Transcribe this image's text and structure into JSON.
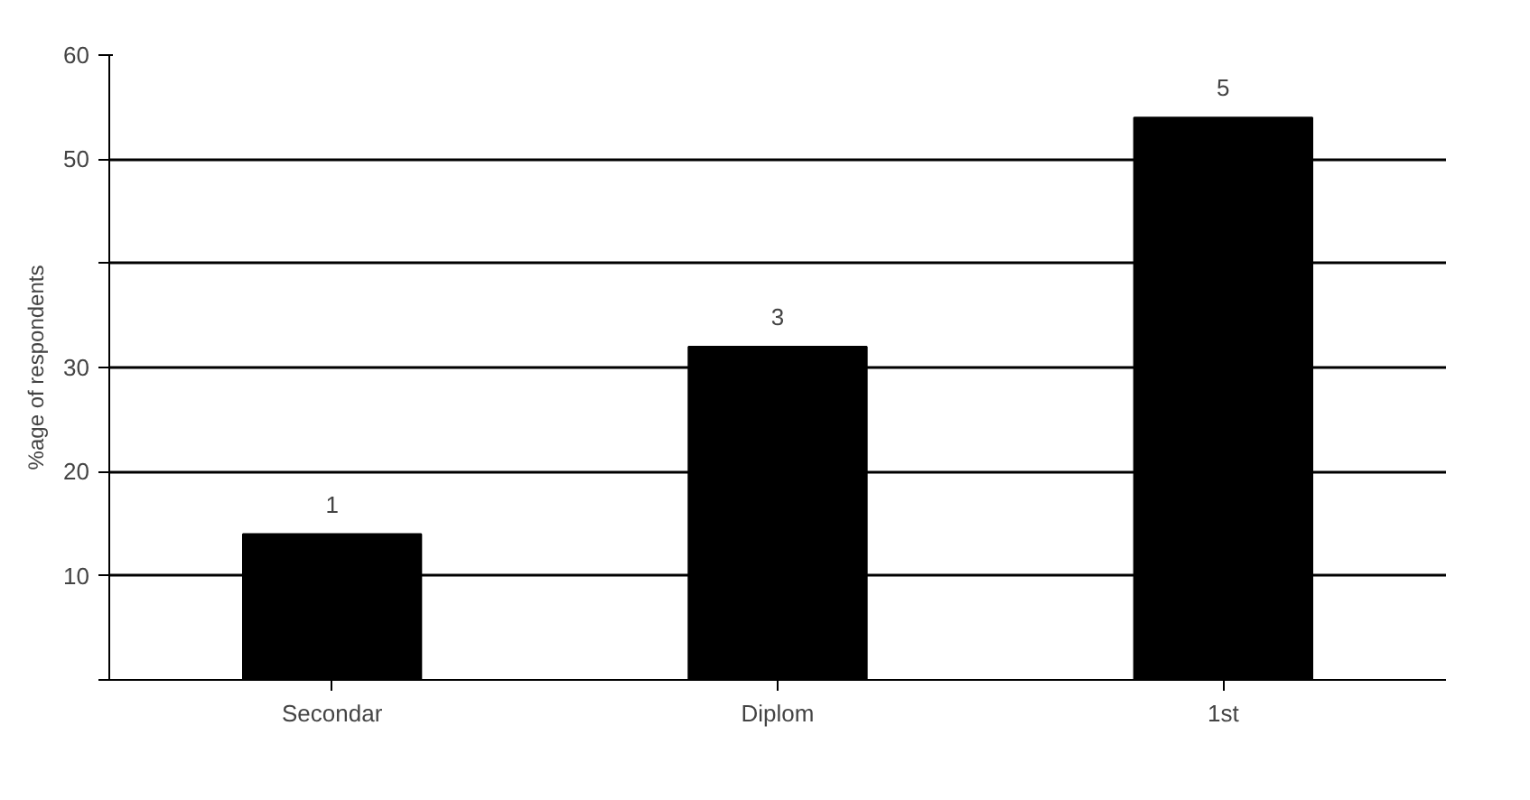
{
  "chart_data": {
    "type": "bar",
    "ylabel": "%age of respondents",
    "categories": [
      "Secondar",
      "Diplom",
      "1st"
    ],
    "values": [
      14,
      32,
      54
    ],
    "color": "#000000",
    "annotations": [
      "1",
      "3",
      "5"
    ],
    "ylim": [
      0,
      60
    ],
    "yticks": [
      {
        "value": 0,
        "label": null
      },
      10,
      20,
      30,
      {
        "value": 40,
        "label": null
      },
      50,
      60
    ],
    "grid": "y"
  }
}
